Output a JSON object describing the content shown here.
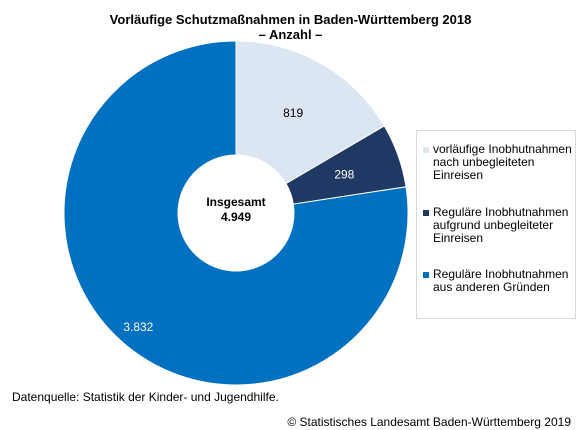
{
  "chart_data": {
    "type": "pie",
    "title": "Vorläufige Schutzmaßnahmen in Baden-Württemberg 2018",
    "subtitle": "– Anzahl –",
    "center_label": "Insgesamt",
    "center_value": "4.949",
    "categories": [
      "vorläufige Inobhutnahmen nach unbegleiteten Einreisen",
      "Reguläre Inobhutnahmen aufgrund unbegleiteter Einreisen",
      "Reguläre Inobhutnahmen aus anderen Gründen"
    ],
    "values": [
      819,
      298,
      3832
    ],
    "value_labels": [
      "819",
      "298",
      "3.832"
    ],
    "colors": [
      "#dce6f2",
      "#1f3864",
      "#0070c0"
    ],
    "legend_lines": [
      [
        "vorläufige Inobhutnahmen",
        "nach unbegleiteten",
        "Einreisen"
      ],
      [
        "Reguläre Inobhutnahmen",
        "aufgrund unbegleiteter",
        "Einreisen"
      ],
      [
        "Reguläre Inobhutnahmen",
        "aus anderen Gründen"
      ]
    ],
    "legend_position": "right"
  },
  "footer": {
    "source": "Datenquelle: Statistik der Kinder- und Jugendhilfe.",
    "copyright": "© Statistisches Landesamt Baden-Württemberg 2019"
  }
}
